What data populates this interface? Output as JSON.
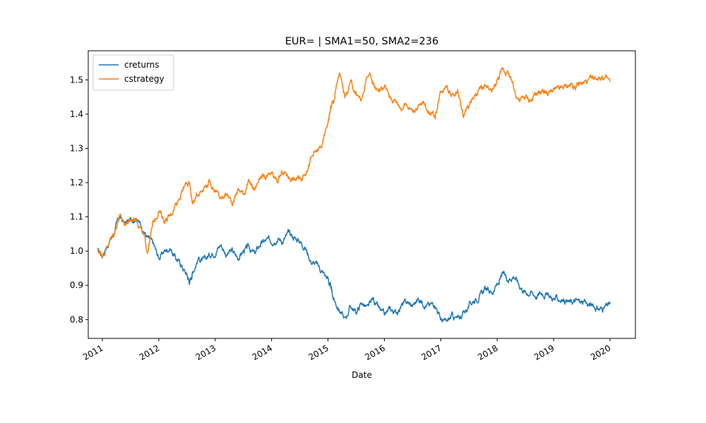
{
  "chart_data": {
    "type": "line",
    "title": "EUR= | SMA1=50, SMA2=236",
    "xlabel": "Date",
    "ylabel": "",
    "x_range": [
      2010.75,
      2020.45
    ],
    "ylim": [
      0.745,
      1.585
    ],
    "x_ticks": [
      {
        "value": 2011,
        "label": "2011"
      },
      {
        "value": 2012,
        "label": "2012"
      },
      {
        "value": 2013,
        "label": "2013"
      },
      {
        "value": 2014,
        "label": "2014"
      },
      {
        "value": 2015,
        "label": "2015"
      },
      {
        "value": 2016,
        "label": "2016"
      },
      {
        "value": 2017,
        "label": "2017"
      },
      {
        "value": 2018,
        "label": "2018"
      },
      {
        "value": 2019,
        "label": "2019"
      },
      {
        "value": 2020,
        "label": "2020"
      }
    ],
    "y_ticks": [
      {
        "value": 0.8,
        "label": "0.8"
      },
      {
        "value": 0.9,
        "label": "0.9"
      },
      {
        "value": 1.0,
        "label": "1.0"
      },
      {
        "value": 1.1,
        "label": "1.1"
      },
      {
        "value": 1.2,
        "label": "1.2"
      },
      {
        "value": 1.3,
        "label": "1.3"
      },
      {
        "value": 1.4,
        "label": "1.4"
      },
      {
        "value": 1.5,
        "label": "1.5"
      }
    ],
    "grid": false,
    "legend_position": "top-left",
    "series": [
      {
        "name": "creturns",
        "color": "#1f77b4",
        "x": [
          2010.92,
          2011.0,
          2011.1,
          2011.2,
          2011.3,
          2011.4,
          2011.5,
          2011.6,
          2011.7,
          2011.8,
          2011.9,
          2012.0,
          2012.1,
          2012.2,
          2012.3,
          2012.4,
          2012.5,
          2012.55,
          2012.6,
          2012.7,
          2012.8,
          2012.9,
          2013.0,
          2013.1,
          2013.2,
          2013.3,
          2013.4,
          2013.5,
          2013.6,
          2013.7,
          2013.8,
          2013.9,
          2014.0,
          2014.1,
          2014.2,
          2014.3,
          2014.4,
          2014.5,
          2014.6,
          2014.7,
          2014.8,
          2014.9,
          2015.0,
          2015.05,
          2015.1,
          2015.2,
          2015.3,
          2015.4,
          2015.5,
          2015.6,
          2015.7,
          2015.8,
          2015.9,
          2016.0,
          2016.1,
          2016.2,
          2016.3,
          2016.4,
          2016.5,
          2016.6,
          2016.7,
          2016.8,
          2016.9,
          2017.0,
          2017.1,
          2017.2,
          2017.3,
          2017.4,
          2017.5,
          2017.6,
          2017.7,
          2017.8,
          2017.9,
          2018.0,
          2018.1,
          2018.2,
          2018.3,
          2018.4,
          2018.5,
          2018.6,
          2018.7,
          2018.8,
          2018.9,
          2019.0,
          2019.1,
          2019.2,
          2019.3,
          2019.4,
          2019.5,
          2019.6,
          2019.7,
          2019.8,
          2019.9,
          2020.0
        ],
        "values": [
          1.0,
          0.99,
          1.02,
          1.05,
          1.1,
          1.08,
          1.09,
          1.1,
          1.07,
          1.04,
          1.02,
          0.98,
          1.0,
          1.01,
          0.98,
          0.96,
          0.93,
          0.91,
          0.94,
          0.98,
          0.97,
          0.99,
          1.0,
          1.02,
          0.99,
          1.0,
          0.98,
          1.0,
          1.01,
          0.99,
          1.02,
          1.03,
          1.03,
          1.04,
          1.03,
          1.05,
          1.04,
          1.03,
          1.01,
          0.97,
          0.96,
          0.94,
          0.92,
          0.89,
          0.86,
          0.83,
          0.8,
          0.84,
          0.82,
          0.85,
          0.83,
          0.86,
          0.83,
          0.81,
          0.83,
          0.82,
          0.84,
          0.85,
          0.84,
          0.86,
          0.85,
          0.84,
          0.85,
          0.8,
          0.79,
          0.81,
          0.8,
          0.82,
          0.84,
          0.86,
          0.87,
          0.89,
          0.88,
          0.9,
          0.93,
          0.92,
          0.93,
          0.9,
          0.88,
          0.88,
          0.87,
          0.88,
          0.87,
          0.86,
          0.86,
          0.855,
          0.85,
          0.855,
          0.85,
          0.845,
          0.84,
          0.83,
          0.835,
          0.845
        ]
      },
      {
        "name": "cstrategy",
        "color": "#ff7f0e",
        "x": [
          2010.92,
          2011.0,
          2011.1,
          2011.2,
          2011.3,
          2011.4,
          2011.5,
          2011.6,
          2011.7,
          2011.8,
          2011.9,
          2012.0,
          2012.1,
          2012.2,
          2012.3,
          2012.4,
          2012.5,
          2012.55,
          2012.6,
          2012.7,
          2012.8,
          2012.9,
          2013.0,
          2013.1,
          2013.2,
          2013.3,
          2013.4,
          2013.5,
          2013.6,
          2013.7,
          2013.8,
          2013.9,
          2014.0,
          2014.1,
          2014.2,
          2014.3,
          2014.4,
          2014.5,
          2014.6,
          2014.7,
          2014.8,
          2014.9,
          2015.0,
          2015.05,
          2015.1,
          2015.2,
          2015.3,
          2015.4,
          2015.5,
          2015.6,
          2015.7,
          2015.8,
          2015.9,
          2016.0,
          2016.1,
          2016.2,
          2016.3,
          2016.4,
          2016.5,
          2016.6,
          2016.7,
          2016.8,
          2016.9,
          2017.0,
          2017.1,
          2017.2,
          2017.3,
          2017.4,
          2017.5,
          2017.6,
          2017.7,
          2017.8,
          2017.9,
          2018.0,
          2018.1,
          2018.2,
          2018.3,
          2018.4,
          2018.5,
          2018.6,
          2018.7,
          2018.8,
          2018.9,
          2019.0,
          2019.1,
          2019.2,
          2019.3,
          2019.4,
          2019.5,
          2019.6,
          2019.7,
          2019.8,
          2019.9,
          2020.0
        ],
        "values": [
          1.0,
          0.99,
          1.02,
          1.05,
          1.1,
          1.08,
          1.09,
          1.1,
          1.06,
          1.0,
          1.08,
          1.12,
          1.09,
          1.1,
          1.14,
          1.17,
          1.2,
          1.19,
          1.14,
          1.17,
          1.19,
          1.2,
          1.18,
          1.15,
          1.17,
          1.14,
          1.18,
          1.17,
          1.2,
          1.18,
          1.22,
          1.21,
          1.22,
          1.2,
          1.23,
          1.22,
          1.21,
          1.21,
          1.23,
          1.27,
          1.29,
          1.31,
          1.38,
          1.42,
          1.44,
          1.52,
          1.45,
          1.49,
          1.46,
          1.44,
          1.52,
          1.49,
          1.47,
          1.48,
          1.45,
          1.44,
          1.42,
          1.43,
          1.41,
          1.42,
          1.43,
          1.41,
          1.39,
          1.47,
          1.49,
          1.45,
          1.47,
          1.39,
          1.43,
          1.45,
          1.47,
          1.48,
          1.46,
          1.5,
          1.53,
          1.52,
          1.47,
          1.44,
          1.45,
          1.44,
          1.46,
          1.47,
          1.46,
          1.47,
          1.47,
          1.48,
          1.485,
          1.48,
          1.49,
          1.495,
          1.5,
          1.51,
          1.505,
          1.495
        ]
      }
    ]
  }
}
